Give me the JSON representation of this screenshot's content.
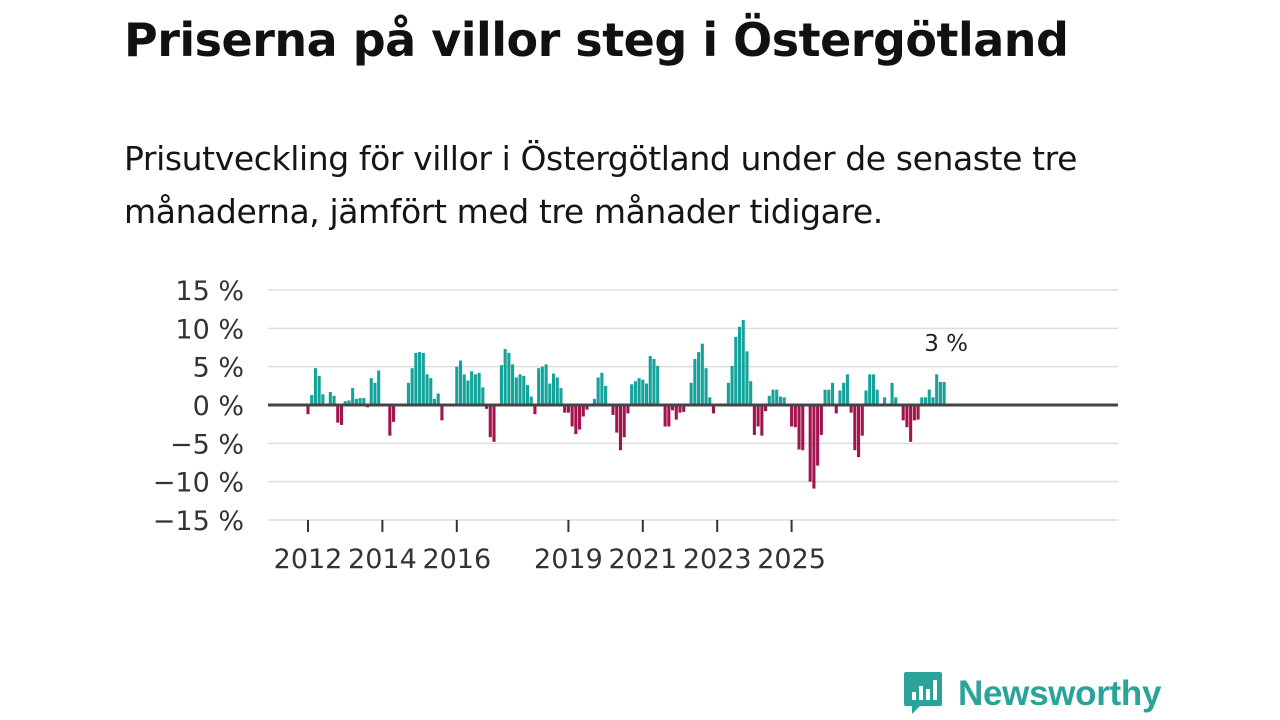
{
  "header": {
    "title": "Priserna på villor steg i Östergötland",
    "subtitle": "Prisutveckling för villor i Östergötland under de senaste tre månaderna, jämfört med tre månader tidigare."
  },
  "brand": {
    "name": "Newsworthy"
  },
  "colors": {
    "positive": "#14a39b",
    "negative": "#a3144c",
    "grid": "#dddddd",
    "zero_line": "#444444",
    "brand": "#2aa39a"
  },
  "chart_data": {
    "type": "bar",
    "title": "Prisutveckling för villor i Östergötland",
    "unit": "%",
    "ylim": [
      -15,
      15
    ],
    "y_ticks": [
      15,
      10,
      5,
      0,
      -5,
      -10,
      -15
    ],
    "y_tick_labels": [
      "15 %",
      "10 %",
      "5 %",
      "0 %",
      "−5 %",
      "−10 %",
      "−15 %"
    ],
    "x_ticks": [
      {
        "label": "2012",
        "index": 0
      },
      {
        "label": "2014",
        "index": 20
      },
      {
        "label": "2016",
        "index": 40
      },
      {
        "label": "2019",
        "index": 70
      },
      {
        "label": "2021",
        "index": 90
      },
      {
        "label": "2023",
        "index": 110
      },
      {
        "label": "2025",
        "index": 130
      }
    ],
    "last_value_label": "3 %",
    "values": [
      -1.2,
      1.3,
      4.8,
      3.8,
      1.4,
      0,
      1.7,
      1.2,
      -2.3,
      -2.6,
      0.5,
      0.6,
      2.2,
      0.8,
      0.9,
      0.9,
      -0.3,
      3.5,
      2.9,
      4.5,
      0,
      0,
      -4.0,
      -2.2,
      0,
      0,
      0,
      2.9,
      4.8,
      6.8,
      6.9,
      6.8,
      4.0,
      3.5,
      0.8,
      1.5,
      -2.0,
      0,
      0,
      -0.2,
      5.0,
      5.8,
      4.0,
      3.2,
      4.4,
      4.0,
      4.2,
      2.3,
      -0.5,
      -4.2,
      -4.8,
      0,
      5.2,
      7.3,
      6.8,
      5.3,
      3.6,
      4.0,
      3.8,
      2.6,
      1.1,
      -1.2,
      4.8,
      5.0,
      5.3,
      2.8,
      4.1,
      3.6,
      2.2,
      -1.0,
      -1.0,
      -2.8,
      -3.8,
      -3.2,
      -1.5,
      -0.6,
      0,
      0.8,
      3.6,
      4.2,
      2.5,
      0,
      -1.3,
      -3.6,
      -5.9,
      -4.2,
      -1.1,
      2.7,
      3.1,
      3.5,
      3.3,
      2.8,
      6.4,
      6.0,
      5.1,
      0,
      -2.8,
      -2.8,
      -0.7,
      -1.9,
      -1.0,
      -0.9,
      0,
      2.9,
      6.0,
      6.9,
      8.0,
      4.8,
      1.0,
      -1.1,
      0,
      0,
      0,
      2.9,
      5.1,
      8.9,
      10.2,
      11.1,
      7.0,
      3.1,
      -3.9,
      -2.8,
      -4.0,
      -0.8,
      1.2,
      2.0,
      2.0,
      1.1,
      1.0,
      0,
      -2.8,
      -2.9,
      -5.8,
      -5.9,
      0,
      -10.0,
      -10.9,
      -7.9,
      -3.9,
      2.0,
      2.0,
      2.9,
      -1.1,
      1.9,
      2.9,
      4.0,
      -1.0,
      -5.9,
      -6.8,
      -4.0,
      1.9,
      4.0,
      4.0,
      2.0,
      0,
      1.0,
      0,
      2.9,
      1.0,
      0,
      -2.0,
      -2.9,
      -4.8,
      -2.0,
      -1.9,
      1.0,
      1.0,
      2.0,
      1.0,
      4.0,
      3.0,
      3.0
    ]
  }
}
